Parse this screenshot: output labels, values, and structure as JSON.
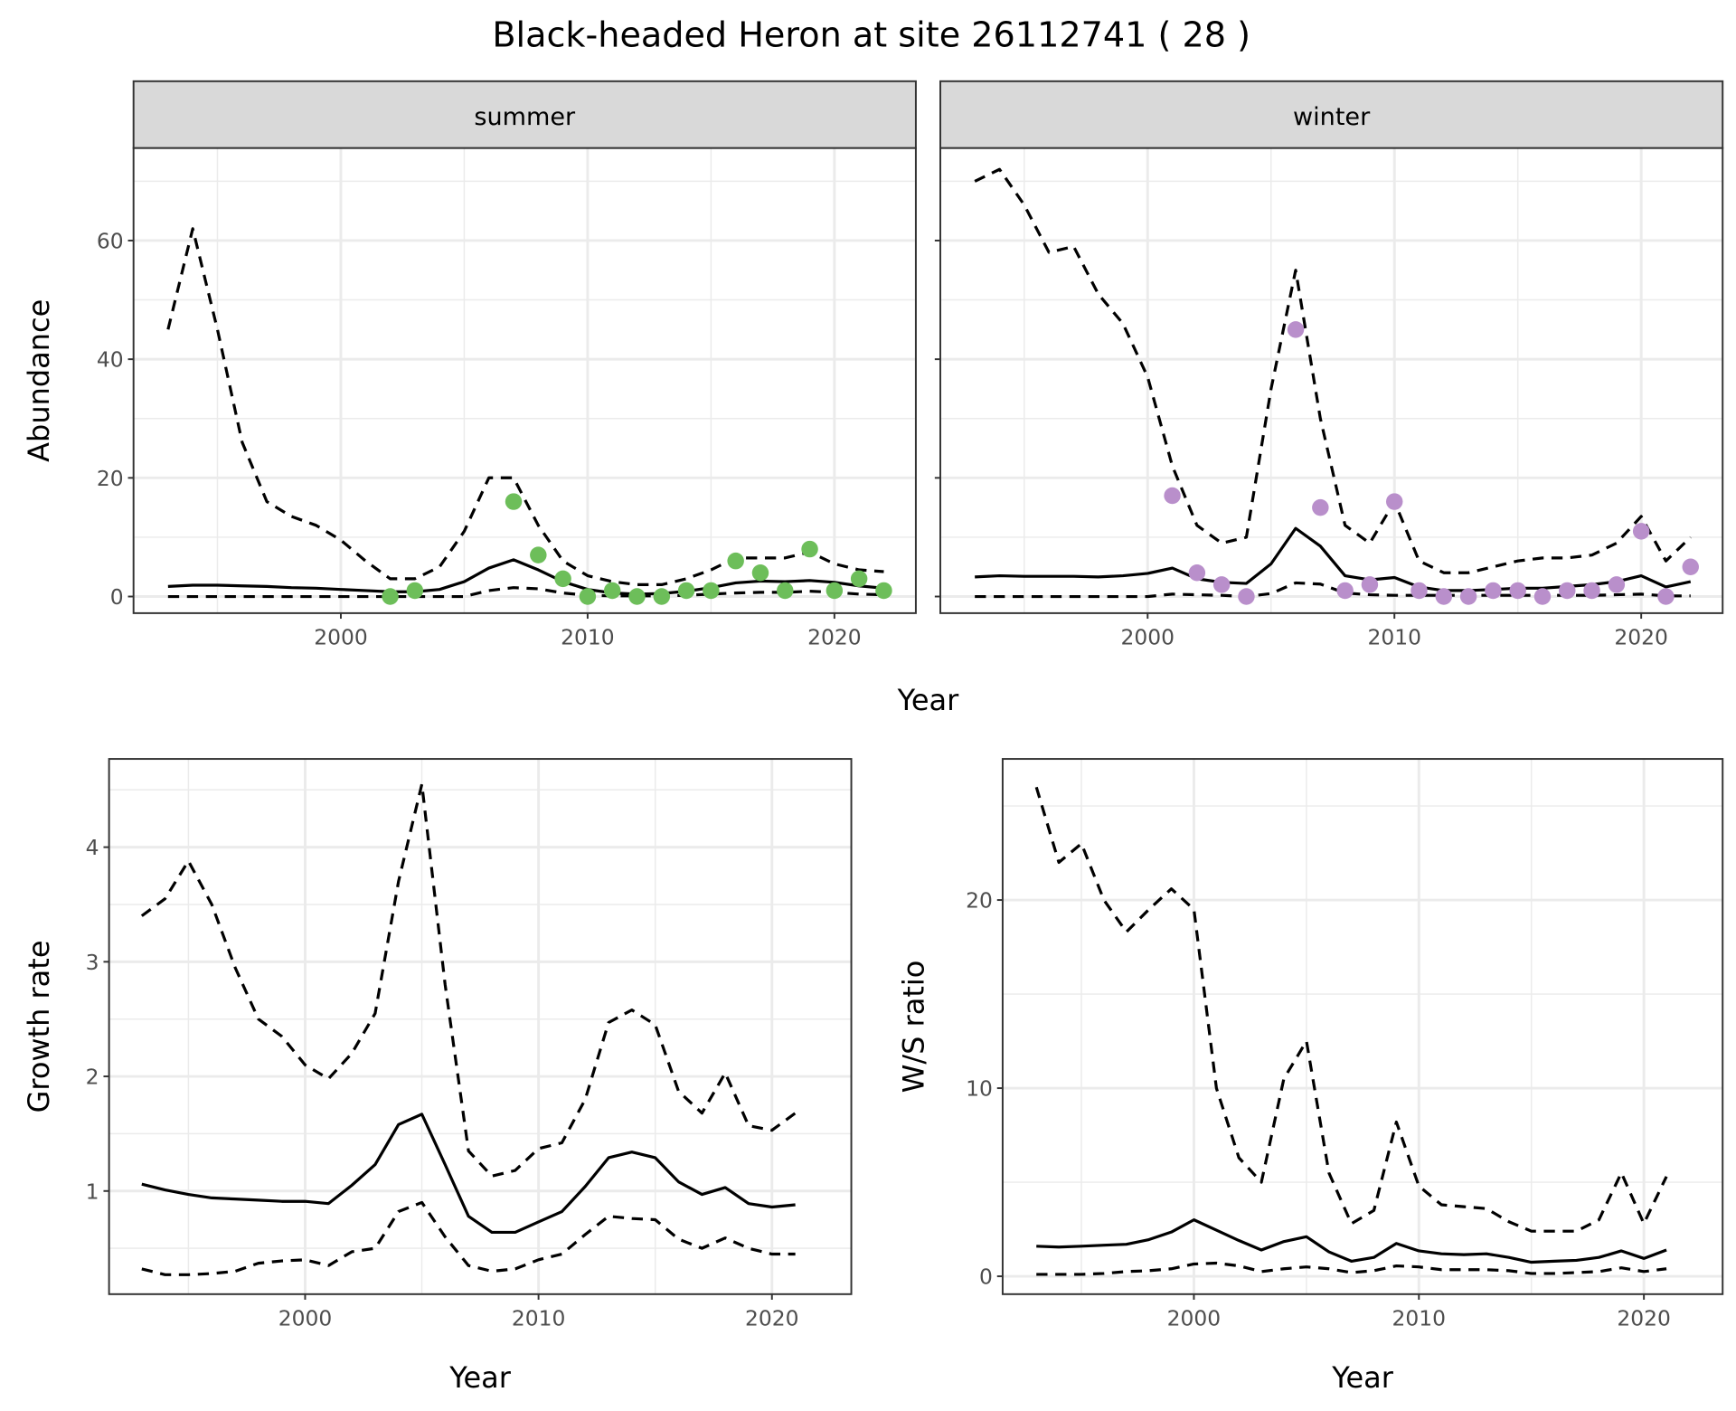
{
  "title": "Black-headed Heron at site 26112741 ( 28 )",
  "colors": {
    "summer": "#6DBE5A",
    "winter": "#B98FCB",
    "line": "#000000",
    "strip_bg": "#D9D9D9",
    "grid": "#EBEBEB"
  },
  "chart_data": [
    {
      "id": "summer",
      "type": "line",
      "strip": "summer",
      "ylabel": "Abundance",
      "xlabel": "Year",
      "point_color": "#6DBE5A",
      "xlim": [
        1991.6,
        2023.3
      ],
      "ylim": [
        -2.8,
        75.6
      ],
      "xticks": [
        2000,
        2010,
        2020
      ],
      "xminor": [
        1995,
        2005,
        2015
      ],
      "yticks": [
        0,
        20,
        40,
        60
      ],
      "ytick_labels": [
        "0",
        "20",
        "40",
        "60"
      ],
      "yminor": [
        10,
        30,
        50,
        70
      ],
      "years": [
        1993,
        1994,
        1995,
        1996,
        1997,
        1998,
        1999,
        2000,
        2001,
        2002,
        2003,
        2004,
        2005,
        2006,
        2007,
        2008,
        2009,
        2010,
        2011,
        2012,
        2013,
        2014,
        2015,
        2016,
        2017,
        2018,
        2019,
        2020,
        2021,
        2022
      ],
      "mean": [
        1.7,
        1.9,
        1.9,
        1.8,
        1.7,
        1.5,
        1.4,
        1.2,
        1.0,
        0.8,
        0.8,
        1.2,
        2.5,
        4.8,
        6.2,
        4.5,
        2.5,
        1.2,
        0.6,
        0.4,
        0.5,
        0.9,
        1.5,
        2.3,
        2.6,
        2.5,
        2.7,
        2.4,
        1.8,
        1.4
      ],
      "upper": [
        45,
        62,
        45,
        26,
        16,
        13.5,
        12,
        9.5,
        6,
        3,
        3,
        5,
        11,
        20,
        20,
        12,
        6,
        3.5,
        2.5,
        2,
        2,
        3,
        4.5,
        6.5,
        6.5,
        6.5,
        7.5,
        5.5,
        4.5,
        4.2
      ],
      "lower": [
        0,
        0,
        0,
        0,
        0,
        0,
        0,
        0,
        0,
        0,
        0,
        0,
        0,
        1,
        1.5,
        1.3,
        0.6,
        0.2,
        0.1,
        0.1,
        0.1,
        0.2,
        0.4,
        0.6,
        0.7,
        0.7,
        0.9,
        0.7,
        0.4,
        0.3
      ],
      "points": {
        "years": [
          2002,
          2003,
          2007,
          2008,
          2009,
          2010,
          2011,
          2012,
          2013,
          2014,
          2015,
          2016,
          2017,
          2018,
          2019,
          2020,
          2021,
          2022
        ],
        "values": [
          0,
          1,
          16,
          7,
          3,
          0,
          1,
          0,
          0,
          1,
          1,
          6,
          4,
          1,
          8,
          1,
          3,
          1
        ]
      }
    },
    {
      "id": "winter",
      "type": "line",
      "strip": "winter",
      "ylabel": "",
      "xlabel": "",
      "point_color": "#B98FCB",
      "xlim": [
        1991.6,
        2023.3
      ],
      "ylim": [
        -2.8,
        75.6
      ],
      "xticks": [
        2000,
        2010,
        2020
      ],
      "xminor": [
        1995,
        2005,
        2015
      ],
      "yticks": [
        0,
        20,
        40,
        60
      ],
      "ytick_labels": [],
      "yminor": [
        10,
        30,
        50,
        70
      ],
      "years": [
        1993,
        1994,
        1995,
        1996,
        1997,
        1998,
        1999,
        2000,
        2001,
        2002,
        2003,
        2004,
        2005,
        2006,
        2007,
        2008,
        2009,
        2010,
        2011,
        2012,
        2013,
        2014,
        2015,
        2016,
        2017,
        2018,
        2019,
        2020,
        2021,
        2022
      ],
      "mean": [
        3.3,
        3.5,
        3.4,
        3.4,
        3.4,
        3.3,
        3.5,
        3.9,
        4.8,
        3.0,
        2.4,
        2.2,
        5.5,
        11.5,
        8.5,
        3.5,
        2.8,
        3.2,
        1.6,
        1.0,
        1.0,
        1.2,
        1.4,
        1.4,
        1.7,
        2.0,
        2.5,
        3.5,
        1.6,
        2.5
      ],
      "upper": [
        70,
        72,
        66,
        58,
        59,
        51,
        46,
        37,
        22,
        12,
        9,
        10,
        35,
        55,
        30,
        12,
        9,
        16,
        6,
        4,
        4,
        5,
        6,
        6.5,
        6.5,
        7,
        9,
        13.5,
        6,
        10
      ],
      "lower": [
        0,
        0,
        0,
        0,
        0,
        0,
        0,
        0,
        0.4,
        0.3,
        0.2,
        0,
        0.5,
        2.3,
        2.1,
        0.6,
        0.3,
        0.2,
        0.2,
        0.2,
        0.2,
        0.2,
        0.2,
        0.2,
        0.2,
        0.2,
        0.3,
        0.4,
        0.1,
        0.1
      ],
      "points": {
        "years": [
          2001,
          2002,
          2003,
          2004,
          2006,
          2007,
          2008,
          2009,
          2010,
          2011,
          2012,
          2013,
          2014,
          2015,
          2016,
          2017,
          2018,
          2019,
          2020,
          2021,
          2022
        ],
        "values": [
          17,
          4,
          2,
          0,
          45,
          15,
          1,
          2,
          16,
          1,
          0,
          0,
          1,
          1,
          0,
          1,
          1,
          2,
          11,
          0,
          5
        ]
      }
    },
    {
      "id": "growth",
      "type": "line",
      "strip": "",
      "ylabel": "Growth rate",
      "xlabel": "Year",
      "point_color": "",
      "xlim": [
        1991.6,
        2023.4
      ],
      "ylim": [
        0.1,
        4.77
      ],
      "xticks": [
        2000,
        2010,
        2020
      ],
      "xminor": [
        1995,
        2005,
        2015
      ],
      "yticks": [
        1,
        2,
        3,
        4
      ],
      "ytick_labels": [
        "1",
        "2",
        "3",
        "4"
      ],
      "yminor": [
        0.5,
        1.5,
        2.5,
        3.5,
        4.5
      ],
      "years": [
        1993,
        1994,
        1995,
        1996,
        1997,
        1998,
        1999,
        2000,
        2001,
        2002,
        2003,
        2004,
        2005,
        2006,
        2007,
        2008,
        2009,
        2010,
        2011,
        2012,
        2013,
        2014,
        2015,
        2016,
        2017,
        2018,
        2019,
        2020,
        2021
      ],
      "mean": [
        1.06,
        1.01,
        0.97,
        0.94,
        0.93,
        0.92,
        0.91,
        0.91,
        0.89,
        1.05,
        1.23,
        1.58,
        1.67,
        1.23,
        0.78,
        0.64,
        0.64,
        0.73,
        0.82,
        1.04,
        1.29,
        1.34,
        1.29,
        1.08,
        0.97,
        1.03,
        0.89,
        0.86,
        0.88
      ],
      "upper": [
        3.4,
        3.55,
        3.88,
        3.5,
        2.95,
        2.5,
        2.35,
        2.1,
        1.98,
        2.2,
        2.55,
        3.7,
        4.55,
        2.8,
        1.35,
        1.13,
        1.18,
        1.37,
        1.42,
        1.8,
        2.47,
        2.58,
        2.45,
        1.87,
        1.68,
        2.03,
        1.57,
        1.53,
        1.68
      ],
      "lower": [
        0.32,
        0.27,
        0.27,
        0.28,
        0.3,
        0.37,
        0.39,
        0.4,
        0.35,
        0.47,
        0.5,
        0.82,
        0.9,
        0.6,
        0.35,
        0.3,
        0.32,
        0.4,
        0.45,
        0.62,
        0.78,
        0.76,
        0.75,
        0.58,
        0.5,
        0.59,
        0.5,
        0.45,
        0.45
      ],
      "points": null
    },
    {
      "id": "ws",
      "type": "line",
      "strip": "",
      "ylabel": "W/S ratio",
      "xlabel": "Year",
      "point_color": "",
      "xlim": [
        1991.5,
        2023.5
      ],
      "ylim": [
        -0.95,
        27.5
      ],
      "xticks": [
        2000,
        2010,
        2020
      ],
      "xminor": [
        1995,
        2005,
        2015
      ],
      "yticks": [
        0,
        10,
        20
      ],
      "ytick_labels": [
        "0",
        "10",
        "20"
      ],
      "yminor": [
        5,
        15,
        25
      ],
      "years": [
        1993,
        1994,
        1995,
        1996,
        1997,
        1998,
        1999,
        2000,
        2001,
        2002,
        2003,
        2004,
        2005,
        2006,
        2007,
        2008,
        2009,
        2010,
        2011,
        2012,
        2013,
        2014,
        2015,
        2016,
        2017,
        2018,
        2019,
        2020,
        2021
      ],
      "mean": [
        1.6,
        1.55,
        1.6,
        1.65,
        1.7,
        1.95,
        2.35,
        3.0,
        2.45,
        1.9,
        1.4,
        1.85,
        2.1,
        1.3,
        0.8,
        1.0,
        1.75,
        1.35,
        1.2,
        1.15,
        1.2,
        1.0,
        0.75,
        0.8,
        0.85,
        1.0,
        1.35,
        0.95,
        1.4
      ],
      "upper": [
        26,
        22,
        23,
        20,
        18.3,
        19.5,
        20.6,
        19.5,
        10,
        6.3,
        5,
        10.5,
        12.5,
        5.5,
        2.8,
        3.5,
        8.2,
        4.8,
        3.8,
        3.7,
        3.6,
        2.9,
        2.4,
        2.4,
        2.4,
        3,
        5.5,
        2.8,
        5.3
      ],
      "lower": [
        0.1,
        0.1,
        0.1,
        0.15,
        0.25,
        0.3,
        0.4,
        0.65,
        0.7,
        0.55,
        0.25,
        0.4,
        0.5,
        0.4,
        0.2,
        0.3,
        0.55,
        0.5,
        0.35,
        0.35,
        0.35,
        0.3,
        0.15,
        0.15,
        0.2,
        0.25,
        0.45,
        0.25,
        0.4
      ],
      "points": null
    }
  ],
  "shared_xlabel": "Year"
}
